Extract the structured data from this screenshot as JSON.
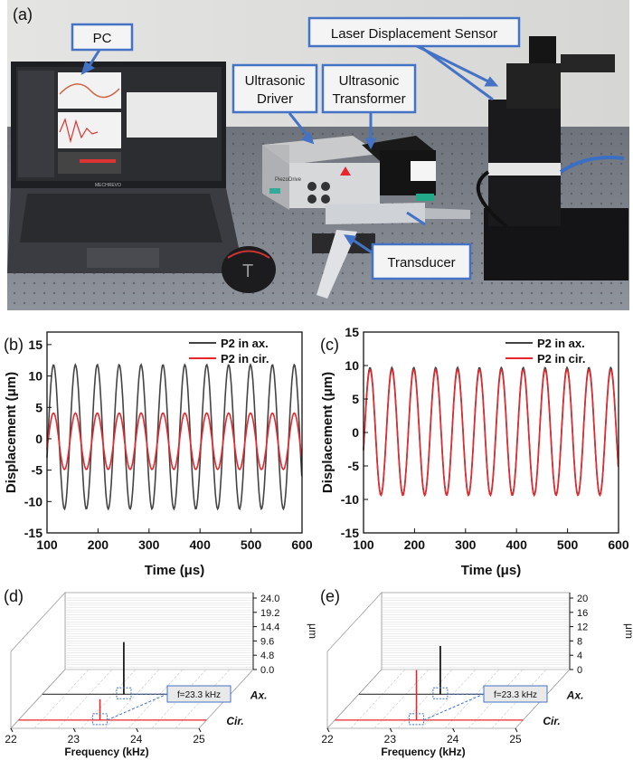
{
  "panel_a": {
    "label": "(a)",
    "callouts": {
      "pc": "PC",
      "laser": "Laser Displacement Sensor",
      "driver_line1": "Ultrasonic",
      "driver_line2": "Driver",
      "transformer_line1": "Ultrasonic",
      "transformer_line2": "Transformer",
      "transducer": "Transducer"
    },
    "laptop_brand": "MECHREVO",
    "driver_brand": "PiezoDrive"
  },
  "chart_data": [
    {
      "id": "b",
      "label": "(b)",
      "type": "line",
      "xlabel": "Time (μs)",
      "ylabel": "Displacement (μm)",
      "xlim": [
        100,
        600
      ],
      "ylim": [
        -15,
        17
      ],
      "xticks": [
        100,
        200,
        300,
        400,
        500,
        600
      ],
      "yticks": [
        -15,
        -10,
        -5,
        0,
        5,
        10,
        15
      ],
      "legend_position": "top-right",
      "series": [
        {
          "name": "P2 in ax.",
          "color": "#444444",
          "amplitude": 11.5,
          "offset": 0.3,
          "frequency_khz": 23.3
        },
        {
          "name": "P2 in cir.",
          "color": "#e8262b",
          "amplitude": 4.5,
          "offset": -0.4,
          "frequency_khz": 23.3
        }
      ]
    },
    {
      "id": "c",
      "label": "(c)",
      "type": "line",
      "xlabel": "Time (μs)",
      "ylabel": "Displacement (μm)",
      "xlim": [
        100,
        600
      ],
      "ylim": [
        -15,
        15
      ],
      "xticks": [
        100,
        200,
        300,
        400,
        500,
        600
      ],
      "yticks": [
        -15,
        -10,
        -5,
        0,
        5,
        10,
        15
      ],
      "legend_position": "top-right",
      "series": [
        {
          "name": "P2 in ax.",
          "color": "#444444",
          "amplitude": 9.5,
          "offset": 0.2,
          "frequency_khz": 23.3
        },
        {
          "name": "P2 in cir.",
          "color": "#e8262b",
          "amplitude": 9.4,
          "offset": 0.0,
          "frequency_khz": 23.3
        }
      ]
    },
    {
      "id": "d",
      "label": "(d)",
      "type": "3d-spectrum",
      "xlabel": "Frequency (kHz)",
      "zlabel": "μm",
      "xticks": [
        "22",
        "23",
        "24",
        "25"
      ],
      "zticks": [
        "24.0",
        "19.2",
        "14.4",
        "9.6",
        "4.8",
        "0.0"
      ],
      "zlim": [
        0,
        24
      ],
      "rows": [
        "Ax.",
        "Cir."
      ],
      "peaks": [
        {
          "row": "Ax.",
          "frequency_khz": 23.3,
          "value": 17.5,
          "color": "#000000"
        },
        {
          "row": "Cir.",
          "frequency_khz": 23.3,
          "value": 7.0,
          "color": "#e8262b"
        }
      ],
      "annotation": "f=23.3 kHz"
    },
    {
      "id": "e",
      "label": "(e)",
      "type": "3d-spectrum",
      "xlabel": "Frequency (kHz)",
      "zlabel": "μm",
      "xticks": [
        "22",
        "23",
        "24",
        "25"
      ],
      "zticks": [
        "20",
        "16",
        "12",
        "8",
        "4",
        "0"
      ],
      "zlim": [
        0,
        20
      ],
      "rows": [
        "Ax.",
        "Cir."
      ],
      "peaks": [
        {
          "row": "Ax.",
          "frequency_khz": 23.3,
          "value": 13.5,
          "color": "#000000"
        },
        {
          "row": "Cir.",
          "frequency_khz": 23.3,
          "value": 14.0,
          "color": "#e8262b"
        }
      ],
      "annotation": "f=23.3 kHz"
    }
  ]
}
